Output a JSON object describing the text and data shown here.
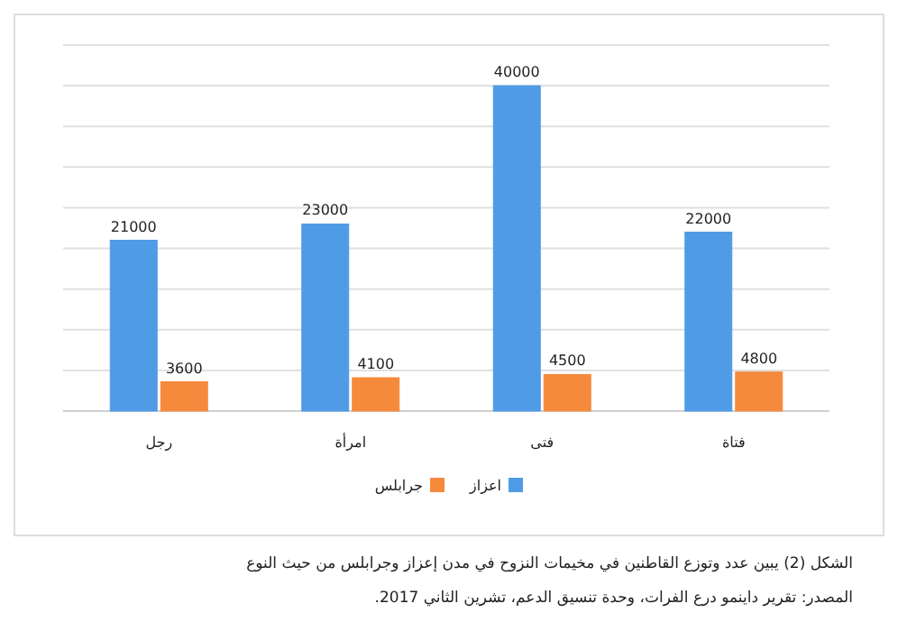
{
  "chart_data": {
    "type": "bar",
    "title": "الشكل (2) يبين عدد وتوزع القاطنين في مخيمات النزوح في مدن إعزاز وجرابلس من حيث النوع",
    "annotations": [
      "المصدر: تقرير داينمو درع الفرات، وحدة تنسيق الدعم، تشرين الثاني 2017."
    ],
    "categories": [
      "رجل",
      "امرأة",
      "فتى",
      "فتاة"
    ],
    "series": [
      {
        "name": "اعزاز",
        "color": "#4f9be6",
        "values": [
          21000,
          23000,
          40000,
          22000
        ]
      },
      {
        "name": "جرابلس",
        "color": "#f58a3c",
        "values": [
          3600,
          4100,
          4500,
          4800
        ]
      }
    ],
    "grid": "y",
    "legend": "bottom",
    "data_labels": true
  }
}
